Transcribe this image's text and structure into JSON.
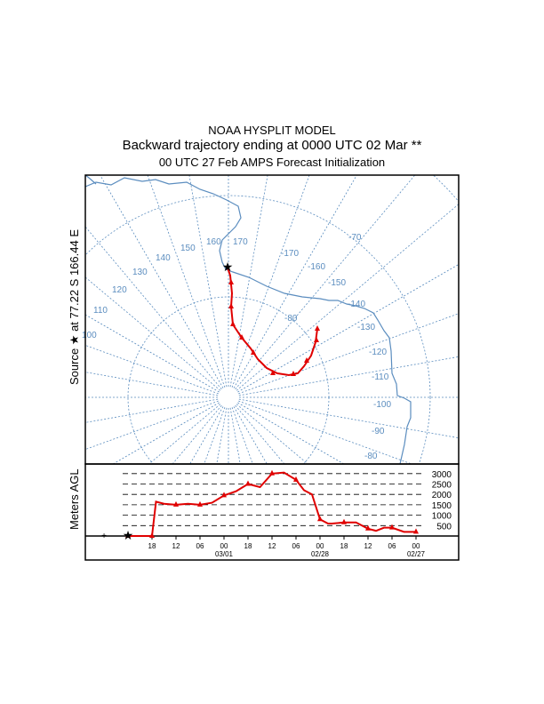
{
  "title": {
    "line1": "NOAA HYSPLIT MODEL",
    "line2": "Backward trajectory ending at 0000 UTC 02 Mar **",
    "line3": "00 UTC 27 Feb    AMPS  Forecast Initialization"
  },
  "source_label": "Source ★ at  77.22 S  166.44 E",
  "map": {
    "meridian_labels": [
      "170",
      "160",
      "150",
      "140",
      "130",
      "120",
      "110",
      "100",
      "-170",
      "-160",
      "-150",
      "-140",
      "-130",
      "-120",
      "-110",
      "-100",
      "-90",
      "-80"
    ],
    "latitude_labels": [
      "-80",
      "-70"
    ],
    "colors": {
      "grid": "#5b8dbf",
      "trajectory": "#e00000"
    }
  },
  "chart_data": {
    "type": "line",
    "title": "",
    "ylabel": "Meters AGL",
    "xlabel": "",
    "ylim": [
      0,
      3000
    ],
    "ytick_labels": [
      "3000",
      "2500",
      "2000",
      "1500",
      "1000",
      "500"
    ],
    "yticks": [
      3000,
      2500,
      2000,
      1500,
      1000,
      500
    ],
    "xtick_labels": [
      "18",
      "12",
      "06",
      "00",
      "18",
      "12",
      "06",
      "00",
      "18",
      "12",
      "06",
      "00"
    ],
    "xtick_hours_back": [
      6,
      12,
      18,
      24,
      30,
      36,
      42,
      48,
      54,
      60,
      66,
      72
    ],
    "date_labels": [
      {
        "text": "03/01",
        "hours_back": 24
      },
      {
        "text": "02/28",
        "hours_back": 48
      },
      {
        "text": "02/27",
        "hours_back": 72
      }
    ],
    "series": [
      {
        "name": "trajectory height",
        "color": "#e00000",
        "hours_back": [
          0,
          3,
          6,
          7,
          9,
          12,
          15,
          18,
          21,
          24,
          27,
          30,
          33,
          36,
          39,
          42,
          44,
          46,
          48,
          50,
          51,
          54,
          57,
          60,
          62,
          64,
          66,
          69,
          72
        ],
        "values": [
          0,
          0,
          0,
          1650,
          1550,
          1500,
          1550,
          1500,
          1600,
          1950,
          2150,
          2500,
          2350,
          3000,
          3050,
          2700,
          2200,
          2000,
          800,
          600,
          600,
          650,
          650,
          350,
          250,
          400,
          400,
          200,
          200
        ]
      }
    ]
  }
}
